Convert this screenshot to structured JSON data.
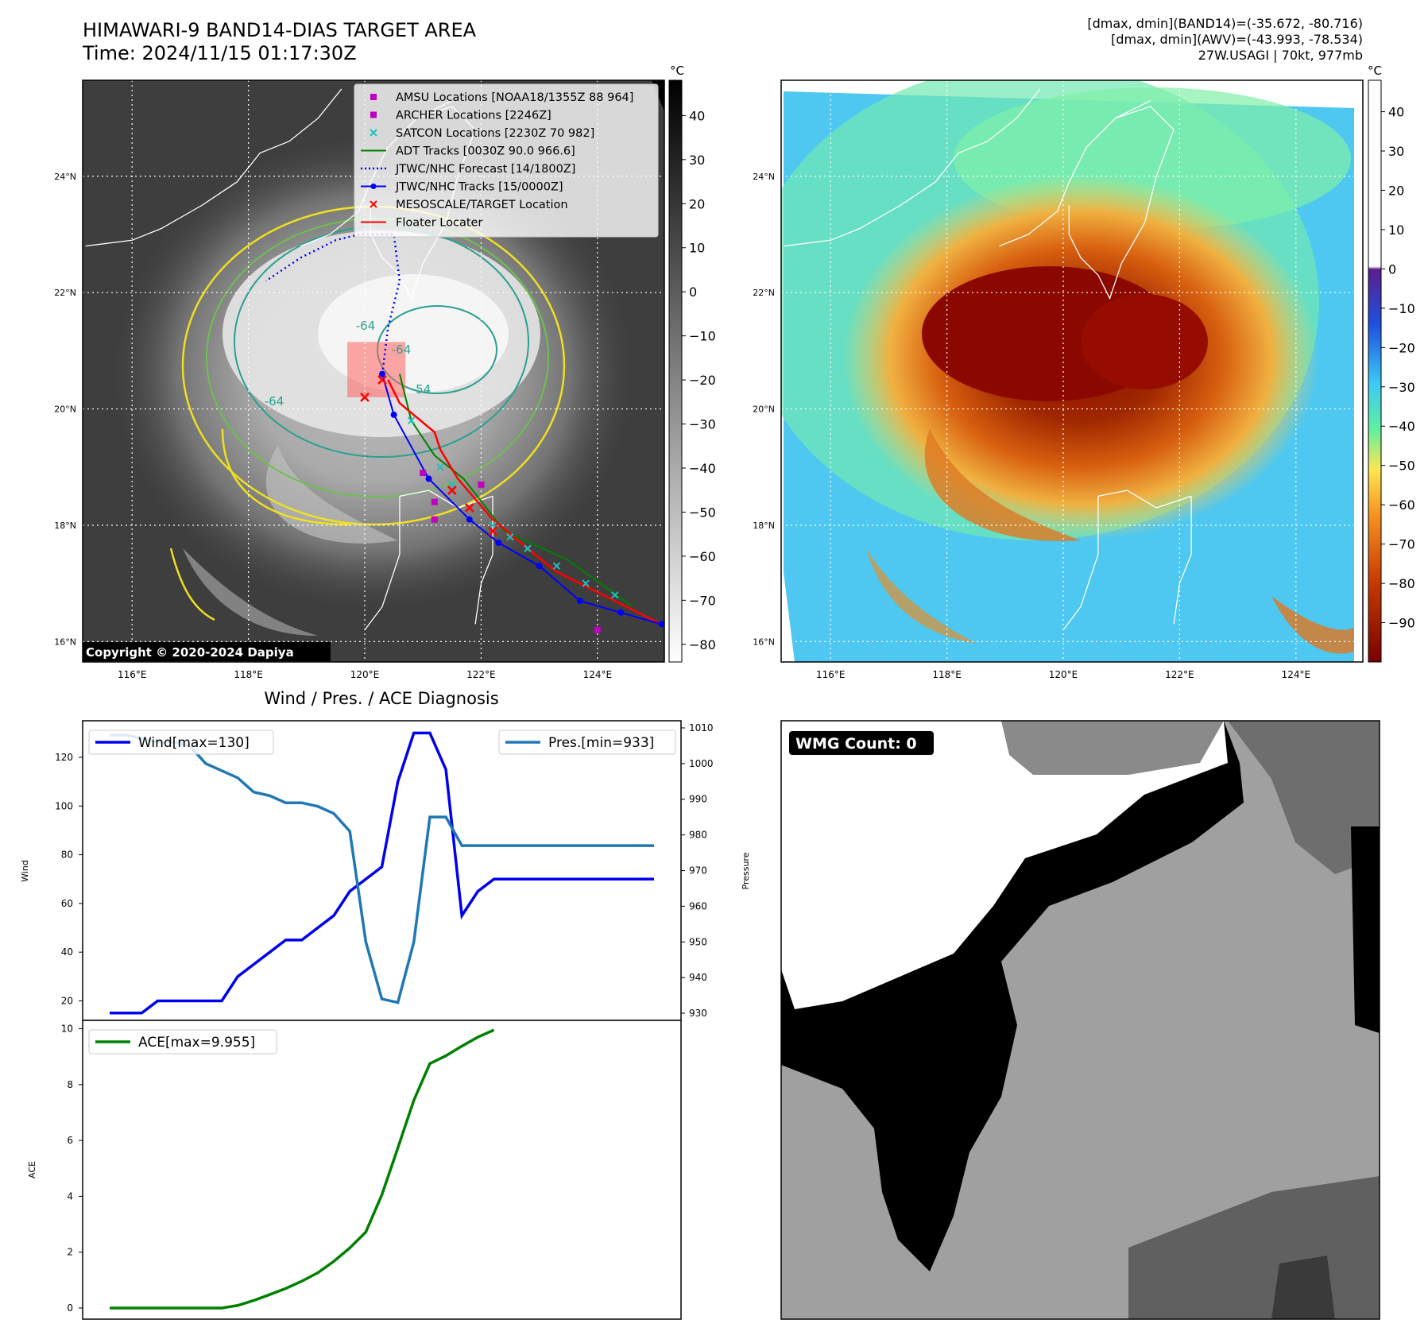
{
  "header": {
    "title_line1": "HIMAWARI-9 BAND14-DIAS TARGET AREA",
    "title_line2": "Time: 2024/11/15 01:17:30Z",
    "info_line1": "[dmax, dmin](BAND14)=(-35.672, -80.716)",
    "info_line2": "[dmax, dmin](AWV)=(-43.993, -78.534)",
    "info_line3": "27W.USAGI | 70kt, 977mb"
  },
  "map_axes": {
    "lon_ticks": [
      "116°E",
      "118°E",
      "120°E",
      "122°E",
      "124°E"
    ],
    "lat_ticks": [
      "24°N",
      "22°N",
      "20°N",
      "18°N",
      "16°N"
    ],
    "lon_range": [
      115.15,
      125.15
    ],
    "lat_range": [
      15.65,
      25.65
    ]
  },
  "ir_panel": {
    "colorbar_unit": "°C",
    "colorbar_ticks": [
      "40",
      "30",
      "20",
      "10",
      "0",
      "−10",
      "−20",
      "−30",
      "−40",
      "−50",
      "−60",
      "−70",
      "−80"
    ],
    "colorbar_range": [
      48,
      -84
    ],
    "copyright": "Copyright © 2020-2024 Dapiya",
    "contour_labels": [
      "-64",
      "-64",
      "-54",
      "-64"
    ],
    "legend": [
      {
        "label": "AMSU Locations [NOAA18/1355Z 88 964]",
        "color": "#c000c0",
        "marker": "square"
      },
      {
        "label": "ARCHER Locations [2246Z]",
        "color": "#c000c0",
        "marker": "square"
      },
      {
        "label": "SATCON Locations [2230Z 70 982]",
        "color": "#20c0c0",
        "marker": "x"
      },
      {
        "label": "ADT Tracks [0030Z 90.0 966.6]",
        "color": "#008000",
        "marker": "line"
      },
      {
        "label": "JTWC/NHC Forecast [14/1800Z]",
        "color": "#0000ff",
        "marker": "dotted"
      },
      {
        "label": "JTWC/NHC Tracks [15/0000Z]",
        "color": "#0000ff",
        "marker": "line-dot"
      },
      {
        "label": "MESOSCALE/TARGET Location",
        "color": "#ff0000",
        "marker": "x"
      },
      {
        "label": "Floater Locater",
        "color": "#ff0000",
        "marker": "line"
      }
    ],
    "jtwc_track": [
      [
        125.1,
        16.3
      ],
      [
        124.4,
        16.5
      ],
      [
        123.7,
        16.7
      ],
      [
        123.0,
        17.3
      ],
      [
        122.3,
        17.7
      ],
      [
        121.8,
        18.1
      ],
      [
        121.1,
        18.8
      ],
      [
        120.5,
        19.9
      ],
      [
        120.3,
        20.6
      ]
    ],
    "jtwc_forecast": [
      [
        120.3,
        20.6
      ],
      [
        120.4,
        21.4
      ],
      [
        120.6,
        22.2
      ],
      [
        120.5,
        23.0
      ],
      [
        119.9,
        23.0
      ],
      [
        119.5,
        22.9
      ],
      [
        118.9,
        22.6
      ],
      [
        118.3,
        22.2
      ]
    ],
    "floater_track": [
      [
        125.1,
        16.3
      ],
      [
        124.5,
        16.6
      ],
      [
        123.9,
        16.9
      ],
      [
        123.3,
        17.2
      ],
      [
        122.8,
        17.6
      ],
      [
        122.2,
        18.1
      ],
      [
        121.6,
        18.8
      ],
      [
        121.3,
        19.3
      ],
      [
        121.2,
        19.6
      ],
      [
        120.6,
        20.1
      ],
      [
        120.4,
        20.5
      ]
    ],
    "adt_track": [
      [
        124.6,
        16.6
      ],
      [
        123.5,
        17.4
      ],
      [
        122.4,
        17.9
      ],
      [
        121.7,
        18.8
      ],
      [
        121.2,
        19.2
      ],
      [
        120.8,
        19.8
      ],
      [
        120.6,
        20.6
      ]
    ],
    "satcon_points": [
      [
        124.3,
        16.8
      ],
      [
        123.8,
        17.0
      ],
      [
        123.3,
        17.3
      ],
      [
        122.8,
        17.6
      ],
      [
        122.5,
        17.8
      ],
      [
        122.2,
        18.0
      ],
      [
        121.8,
        18.3
      ],
      [
        121.5,
        18.7
      ],
      [
        121.3,
        19.0
      ],
      [
        120.8,
        19.8
      ]
    ],
    "amsu_points": [
      [
        121.0,
        18.9
      ],
      [
        121.2,
        18.4
      ],
      [
        121.2,
        18.1
      ],
      [
        122.0,
        18.7
      ],
      [
        124.0,
        16.2
      ]
    ],
    "target_points": [
      [
        120.3,
        20.5
      ],
      [
        120.0,
        20.2
      ],
      [
        121.5,
        18.6
      ],
      [
        121.8,
        18.3
      ],
      [
        122.2,
        17.9
      ]
    ],
    "target_box": {
      "lon": [
        119.7,
        120.7
      ],
      "lat": [
        20.2,
        21.15
      ]
    }
  },
  "awv_panel": {
    "colorbar_unit": "°C",
    "colorbar_ticks": [
      "40",
      "30",
      "20",
      "10",
      "0",
      "−10",
      "−20",
      "−30",
      "−40",
      "−50",
      "−60",
      "−70",
      "−80",
      "−90"
    ],
    "colorbar_range": [
      48,
      -100
    ]
  },
  "chart_data": [
    {
      "type": "line",
      "title": "Wind / Pres. / ACE Diagnosis",
      "ylabel": "Wind",
      "y2label": "Pressure",
      "ylim": [
        12,
        135
      ],
      "y2lim": [
        928,
        1012
      ],
      "yticks": [
        20,
        40,
        60,
        80,
        100,
        120
      ],
      "y2ticks": [
        930,
        940,
        950,
        960,
        970,
        980,
        990,
        1000,
        1010
      ],
      "series": [
        {
          "name": "Wind[max=130]",
          "axis": "left",
          "color": "#0000ee",
          "x": [
            0,
            2,
            4,
            6,
            8,
            10,
            12,
            14,
            16,
            18,
            20,
            22,
            24,
            26,
            28,
            30,
            32,
            34,
            36,
            38,
            40,
            42,
            44,
            46,
            48,
            50,
            52,
            54,
            56,
            58,
            60,
            62,
            64,
            66,
            68
          ],
          "values": [
            15,
            15,
            15,
            20,
            20,
            20,
            20,
            20,
            30,
            35,
            40,
            45,
            45,
            50,
            55,
            65,
            70,
            75,
            110,
            130,
            130,
            115,
            55,
            65,
            70,
            70,
            70,
            70,
            70,
            70,
            70,
            70,
            70,
            70,
            70
          ]
        },
        {
          "name": "Pres.[min=933]",
          "axis": "right",
          "color": "#1f77b4",
          "x": [
            0,
            2,
            4,
            6,
            8,
            10,
            12,
            14,
            16,
            18,
            20,
            22,
            24,
            26,
            28,
            30,
            32,
            34,
            36,
            38,
            40,
            42,
            44,
            46,
            48,
            50,
            52,
            54,
            56,
            58,
            60,
            62,
            64,
            66,
            68
          ],
          "values": [
            1008,
            1008,
            1007,
            1006,
            1006,
            1005,
            1000,
            998,
            996,
            992,
            991,
            989,
            989,
            988,
            986,
            981,
            950,
            934,
            933,
            950,
            985,
            985,
            977,
            977,
            977,
            977,
            977,
            977,
            977,
            977,
            977,
            977,
            977,
            977,
            977
          ]
        }
      ]
    },
    {
      "type": "line",
      "ylabel": "ACE",
      "ylim": [
        -0.4,
        10.3
      ],
      "yticks": [
        0,
        2,
        4,
        6,
        8,
        10
      ],
      "series": [
        {
          "name": "ACE[max=9.955]",
          "color": "#008000",
          "x": [
            0,
            2,
            4,
            6,
            8,
            10,
            12,
            14,
            16,
            18,
            20,
            22,
            24,
            26,
            28,
            30,
            32,
            34,
            36,
            38,
            40,
            42,
            44,
            46,
            48
          ],
          "values": [
            0,
            0,
            0,
            0,
            0,
            0,
            0,
            0,
            0.09,
            0.27,
            0.48,
            0.7,
            0.96,
            1.26,
            1.67,
            2.15,
            2.72,
            4.05,
            5.73,
            7.44,
            8.75,
            9.03,
            9.38,
            9.7,
            9.955
          ]
        }
      ]
    }
  ],
  "wmg_panel": {
    "label": "WMG Count: 0"
  }
}
